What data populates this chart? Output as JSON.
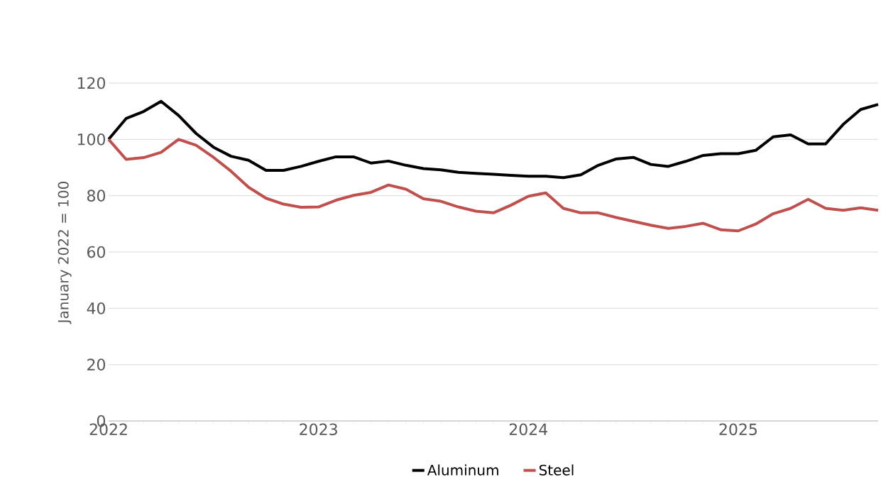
{
  "chart_data": {
    "type": "line",
    "ylabel": "January 2022 = 100",
    "x": [
      "2022-01",
      "2022-02",
      "2022-03",
      "2022-04",
      "2022-05",
      "2022-06",
      "2022-07",
      "2022-08",
      "2022-09",
      "2022-10",
      "2022-11",
      "2022-12",
      "2023-01",
      "2023-02",
      "2023-03",
      "2023-04",
      "2023-05",
      "2023-06",
      "2023-07",
      "2023-08",
      "2023-09",
      "2023-10",
      "2023-11",
      "2023-12",
      "2024-01",
      "2024-02",
      "2024-03",
      "2024-04",
      "2024-05",
      "2024-06",
      "2024-07",
      "2024-08",
      "2024-09",
      "2024-10",
      "2024-11",
      "2024-12",
      "2025-01",
      "2025-02",
      "2025-03",
      "2025-04",
      "2025-05",
      "2025-06",
      "2025-07",
      "2025-08",
      "2025-09"
    ],
    "series": [
      {
        "name": "Aluminum",
        "color": "#000000",
        "values": [
          100,
          107.4,
          109.9,
          113.5,
          108.5,
          102.1,
          97.2,
          94,
          92.6,
          89,
          89,
          90.4,
          92.2,
          93.8,
          93.8,
          91.6,
          92.3,
          90.8,
          89.6,
          89.2,
          88.3,
          87.9,
          87.6,
          87.2,
          86.9,
          86.9,
          86.4,
          87.4,
          90.8,
          93,
          93.6,
          91.1,
          90.4,
          92.2,
          94.3,
          94.9,
          94.9,
          96.1,
          100.9,
          101.6,
          98.4,
          98.4,
          105.3,
          110.6,
          112.4
        ]
      },
      {
        "name": "Steel",
        "color": "#c0504d",
        "values": [
          100,
          92.9,
          93.5,
          95.4,
          100,
          97.9,
          93.6,
          88.7,
          83,
          79.1,
          77,
          75.9,
          76,
          78.4,
          80.1,
          81.2,
          83.8,
          82.3,
          78.9,
          78,
          76,
          74.5,
          73.9,
          76.6,
          79.8,
          81,
          75.5,
          73.9,
          73.9,
          72.3,
          70.9,
          69.5,
          68.4,
          69.1,
          70.2,
          67.9,
          67.5,
          69.9,
          73.6,
          75.5,
          78.7,
          75.5,
          74.8,
          75.7,
          74.8
        ]
      }
    ],
    "xlim": [
      "2022-01",
      "2025-09"
    ],
    "xticks": [
      "2022",
      "2023",
      "2024",
      "2025"
    ],
    "ylim": [
      0,
      120
    ],
    "yticks": [
      0,
      20,
      40,
      60,
      80,
      100,
      120
    ],
    "grid": "y",
    "legend": "bottom",
    "marker": "none",
    "line_style": "solid"
  }
}
